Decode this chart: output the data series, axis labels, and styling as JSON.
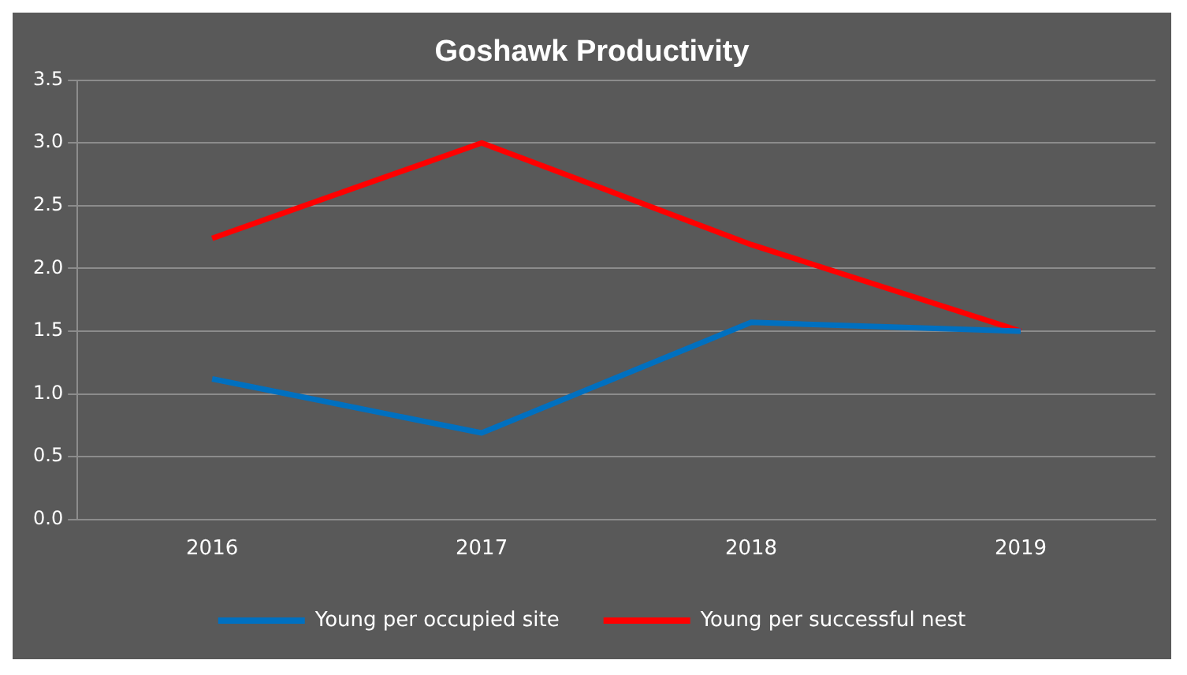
{
  "chart_data": {
    "type": "line",
    "title": "Goshawk Productivity",
    "categories": [
      "2016",
      "2017",
      "2018",
      "2019"
    ],
    "series": [
      {
        "name": "Young per occupied site",
        "color": "#0070c0",
        "values": [
          1.12,
          0.69,
          1.57,
          1.5
        ]
      },
      {
        "name": "Young per successful nest",
        "color": "#ff0000",
        "values": [
          2.24,
          3.0,
          2.19,
          1.5
        ]
      }
    ],
    "ylim": [
      0,
      3.5
    ],
    "yticks": [
      {
        "value": 0,
        "label": "0.0"
      },
      0.5,
      {
        "value": 1,
        "label": "1.0"
      },
      1.5,
      {
        "value": 2,
        "label": "2.0"
      },
      2.5,
      {
        "value": 3,
        "label": "3.0"
      },
      3.5
    ],
    "grid": "y",
    "legend": "bottom",
    "marker": "none"
  }
}
